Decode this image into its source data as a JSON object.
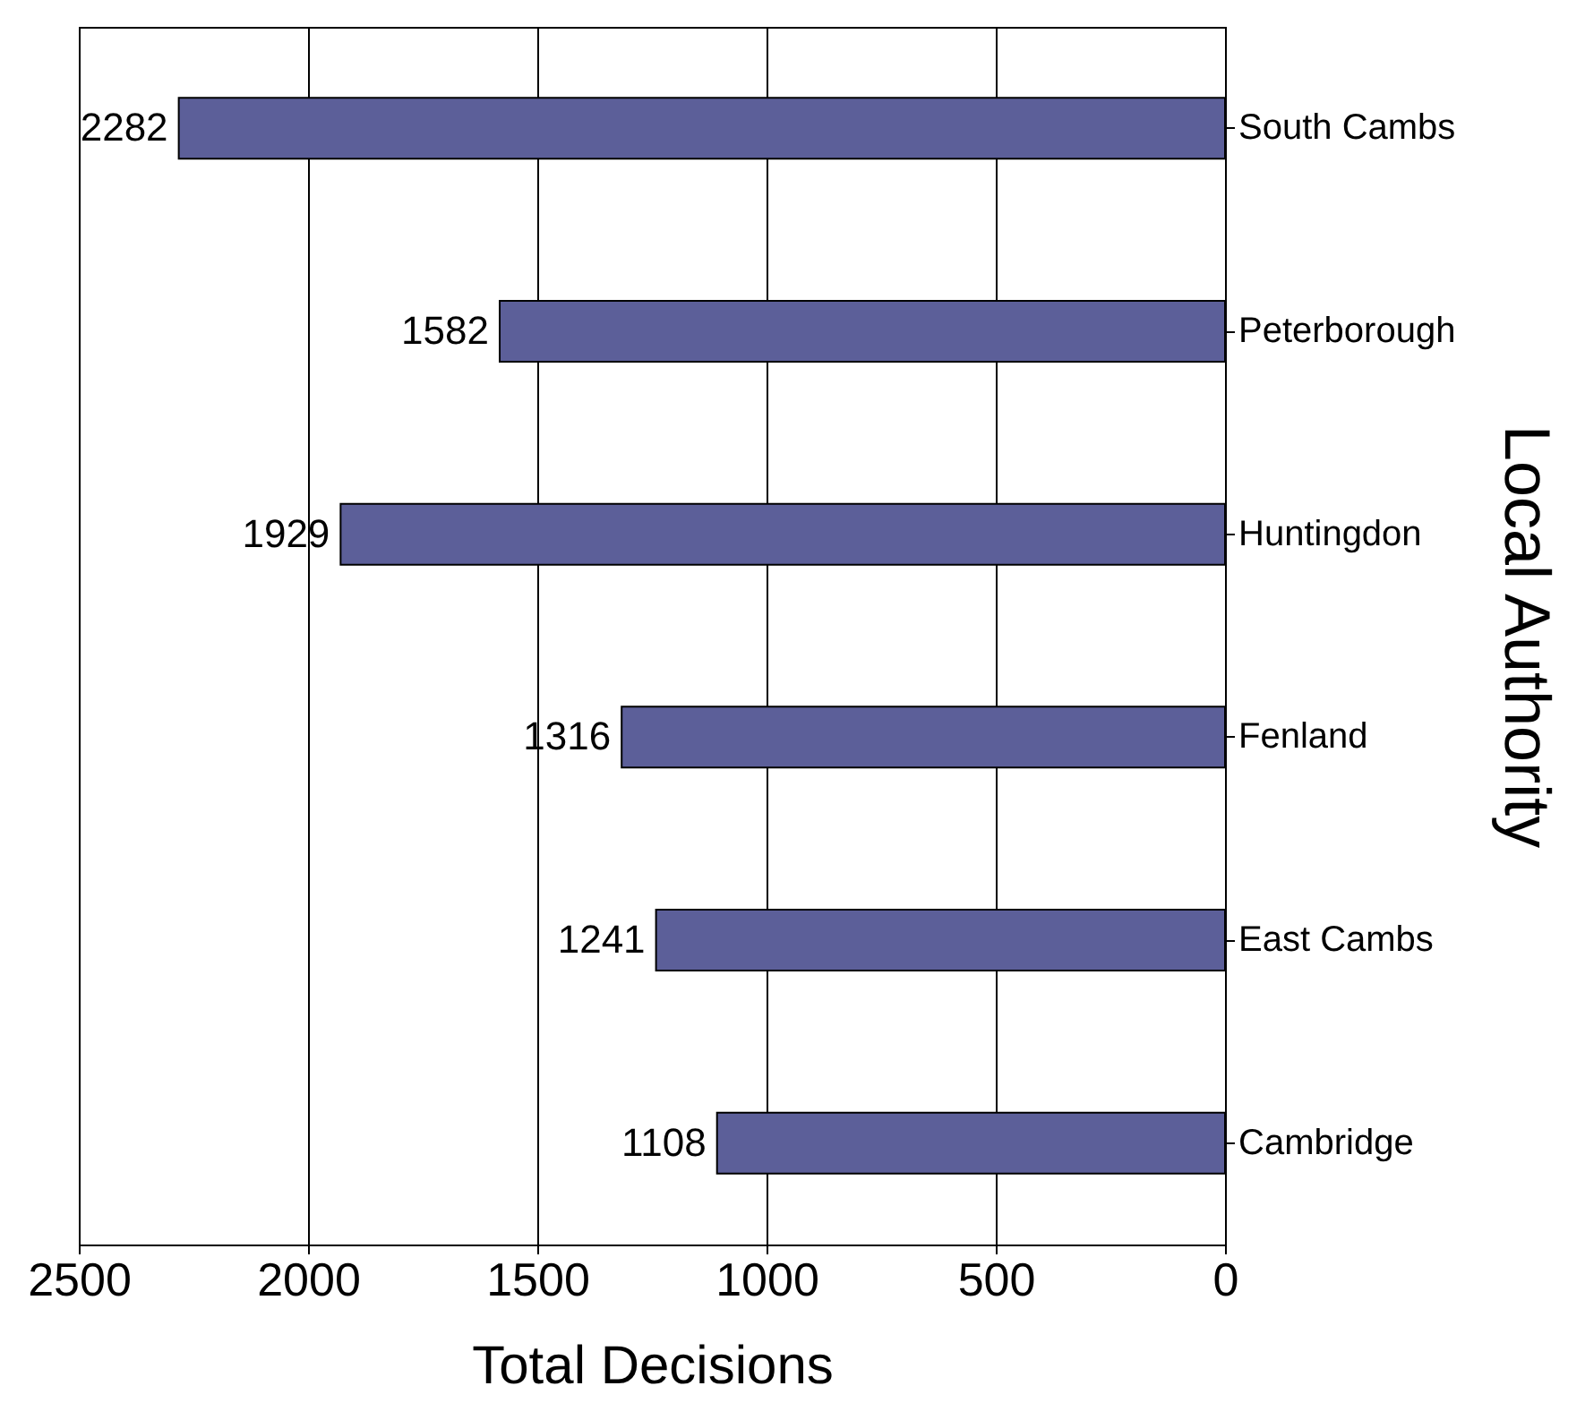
{
  "chart_data": {
    "type": "bar",
    "orientation": "horizontal",
    "xlabel": "Total Decisions",
    "ylabel": "Local Authority",
    "categories": [
      "South Cambs",
      "Peterborough",
      "Huntingdon",
      "Fenland",
      "East Cambs",
      "Cambridge"
    ],
    "values": [
      2282,
      1582,
      1929,
      1316,
      1241,
      1108
    ],
    "color": "#5c5f99",
    "xlim": [
      2500,
      0
    ],
    "xticks": [
      2500,
      2000,
      1500,
      1000,
      500,
      0
    ],
    "grid": "x",
    "data_labels": true
  }
}
